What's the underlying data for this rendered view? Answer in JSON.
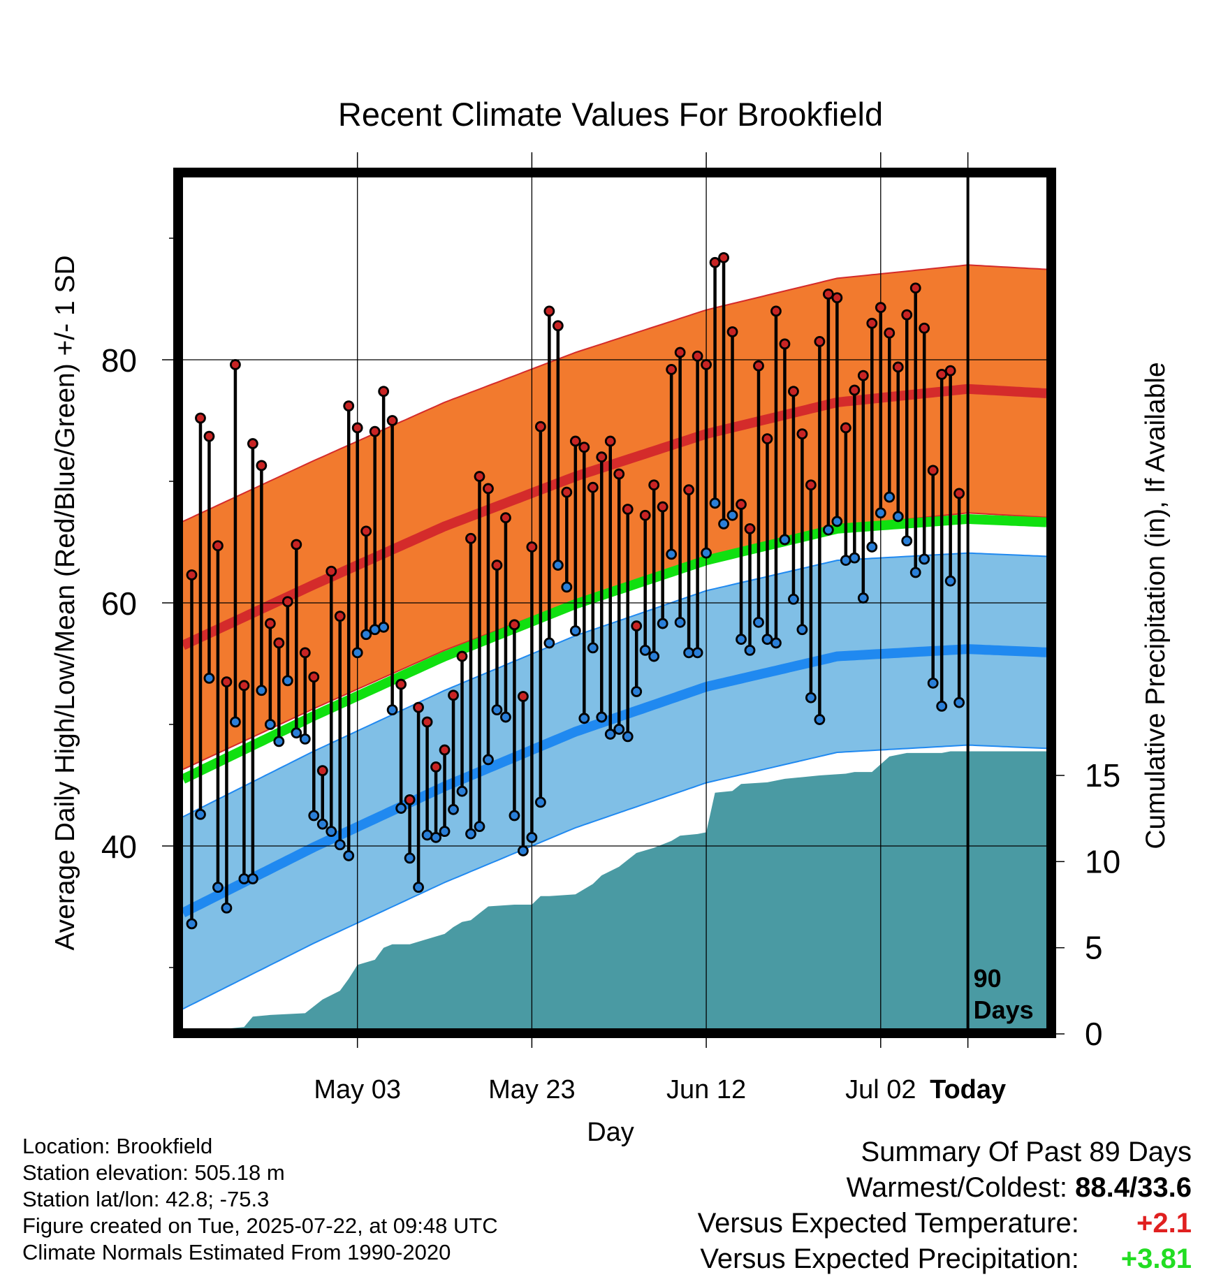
{
  "chart_data": {
    "type": "line",
    "title": "Recent Climate Values For Brookfield",
    "xlabel": "Day",
    "ylabel": "Average Daily High/Low/Mean (Red/Blue/Green) +/- 1 SD",
    "y2label": "Cumulative Precipitation (in), If Available",
    "ylim": [
      25,
      95
    ],
    "y2lim": [
      0,
      20
    ],
    "yticks": [
      "40",
      "60",
      "80"
    ],
    "y2ticks": [
      "0",
      "5",
      "10",
      "15"
    ],
    "xticks": [
      "May 03",
      "May 23",
      "Jun 12",
      "Jul 02",
      "Today"
    ],
    "x_range_days_before_today": [
      -90,
      9
    ],
    "today_label": "90 Days",
    "grid": true,
    "colors": {
      "high_band": "#f27a2e",
      "high_mean": "#d42b2b",
      "low_band": "#80bfe6",
      "low_mean": "#2089f0",
      "daily_mean": "#10e010",
      "precip": "#4a9aa3",
      "high_dot": "#c82424",
      "low_dot": "#2a7fd8"
    },
    "normals": {
      "days_before_today": [
        -90,
        -75,
        -60,
        -45,
        -30,
        -15,
        0,
        10
      ],
      "mean_high": [
        56.5,
        61.5,
        66.3,
        70.4,
        73.9,
        76.5,
        77.6,
        77.2
      ],
      "mean_low": [
        34.5,
        39.9,
        44.9,
        49.4,
        53.1,
        55.6,
        56.2,
        55.9
      ],
      "mean_daily": [
        45.5,
        50.7,
        55.6,
        59.9,
        63.5,
        66.1,
        66.9,
        66.6
      ],
      "high_sd": 10.2,
      "low_sd": 7.9
    },
    "series": [
      {
        "name": "Daily High",
        "values": [
          62.3,
          75.2,
          73.7,
          64.7,
          53.5,
          79.6,
          53.2,
          73.1,
          71.3,
          58.3,
          56.7,
          60.1,
          64.8,
          55.9,
          53.9,
          46.2,
          62.6,
          58.9,
          76.2,
          74.4,
          65.9,
          74.1,
          77.4,
          75.0,
          53.3,
          43.8,
          51.4,
          50.2,
          46.5,
          47.9,
          52.4,
          55.6,
          65.3,
          70.4,
          69.4,
          63.1,
          67.0,
          58.2,
          52.3,
          64.6,
          74.5,
          84.0,
          82.8,
          69.1,
          73.3,
          72.8,
          69.5,
          72.0,
          73.3,
          70.6,
          67.7,
          58.1,
          67.2,
          69.7,
          67.9,
          79.2,
          80.6,
          69.3,
          80.3,
          79.6,
          88.0,
          88.4,
          82.3,
          68.1,
          66.1,
          79.5,
          73.5,
          84.0,
          81.3,
          77.4,
          73.9,
          69.7,
          81.5,
          85.4,
          85.1,
          74.4,
          77.5,
          78.7,
          83.0,
          84.3,
          82.2,
          79.4,
          83.7,
          85.9,
          82.6,
          70.9,
          78.8,
          79.1,
          69.0
        ]
      },
      {
        "name": "Daily Low",
        "values": [
          33.6,
          42.6,
          53.8,
          36.6,
          34.9,
          50.2,
          37.3,
          37.3,
          52.8,
          50.0,
          48.6,
          53.6,
          49.3,
          48.8,
          42.5,
          41.8,
          41.2,
          40.1,
          39.2,
          55.9,
          57.4,
          57.8,
          58.0,
          51.2,
          43.1,
          39.0,
          36.6,
          40.9,
          40.7,
          41.2,
          43.0,
          44.5,
          41.0,
          41.6,
          47.1,
          51.2,
          50.6,
          42.5,
          39.6,
          40.7,
          43.6,
          56.7,
          63.1,
          61.3,
          57.7,
          50.5,
          56.3,
          50.6,
          49.2,
          49.6,
          49.0,
          52.7,
          56.1,
          55.6,
          58.3,
          64.0,
          58.4,
          55.9,
          55.9,
          64.1,
          68.2,
          66.5,
          67.2,
          57.0,
          56.1,
          58.4,
          57.0,
          56.7,
          65.2,
          60.3,
          57.8,
          52.2,
          50.4,
          66.0,
          66.7,
          63.5,
          63.7,
          60.4,
          64.6,
          67.4,
          68.7,
          67.1,
          65.1,
          62.5,
          63.6,
          53.4,
          51.5,
          61.8,
          51.8
        ]
      },
      {
        "name": "Cumulative Precipitation",
        "days_before_today": [
          -90,
          -87,
          -85,
          -83,
          -82,
          -80,
          -76,
          -74,
          -72,
          -71,
          -70,
          -68,
          -67,
          -66,
          -64,
          -62,
          -60,
          -59,
          -58,
          -57,
          -56,
          -55,
          -52,
          -50,
          -49,
          -48,
          -45,
          -43,
          -42,
          -40,
          -38,
          -36,
          -34,
          -33,
          -31,
          -30,
          -29,
          -27,
          -26,
          -23,
          -22,
          -21,
          -19,
          -17,
          -14,
          -13,
          -11,
          -9,
          -7,
          -5,
          -3,
          -2,
          0,
          10
        ],
        "values": [
          0.0,
          0.0,
          0.3,
          0.4,
          1.0,
          1.1,
          1.2,
          2.0,
          2.5,
          3.2,
          4.0,
          4.3,
          5.0,
          5.2,
          5.2,
          5.5,
          5.8,
          6.2,
          6.5,
          6.6,
          7.0,
          7.4,
          7.5,
          7.5,
          8.0,
          8.0,
          8.1,
          8.7,
          9.2,
          9.7,
          10.5,
          10.8,
          11.2,
          11.5,
          11.6,
          11.7,
          14.0,
          14.1,
          14.5,
          14.6,
          14.7,
          14.8,
          14.9,
          15.0,
          15.1,
          15.2,
          15.2,
          16.1,
          16.3,
          16.3,
          16.3,
          16.4,
          16.4,
          16.4
        ]
      }
    ]
  },
  "info": {
    "location": "Location: Brookfield",
    "elevation": "Station elevation: 505.18 m",
    "latlon": "Station lat/lon: 42.8; -75.3",
    "created": "Figure created on Tue, 2025-07-22, at 09:48 UTC",
    "normals": "Climate Normals Estimated From 1990-2020"
  },
  "summary": {
    "title": "Summary Of Past 89 Days",
    "warm_label": "Warmest/Coldest:",
    "warm_value": "88.4/33.6",
    "temp_label": "Versus Expected Temperature:",
    "temp_value": "+2.1",
    "temp_color": "#e02020",
    "precip_label": "Versus Expected Precipitation:",
    "precip_value": "+3.81",
    "precip_color": "#22dd22"
  }
}
